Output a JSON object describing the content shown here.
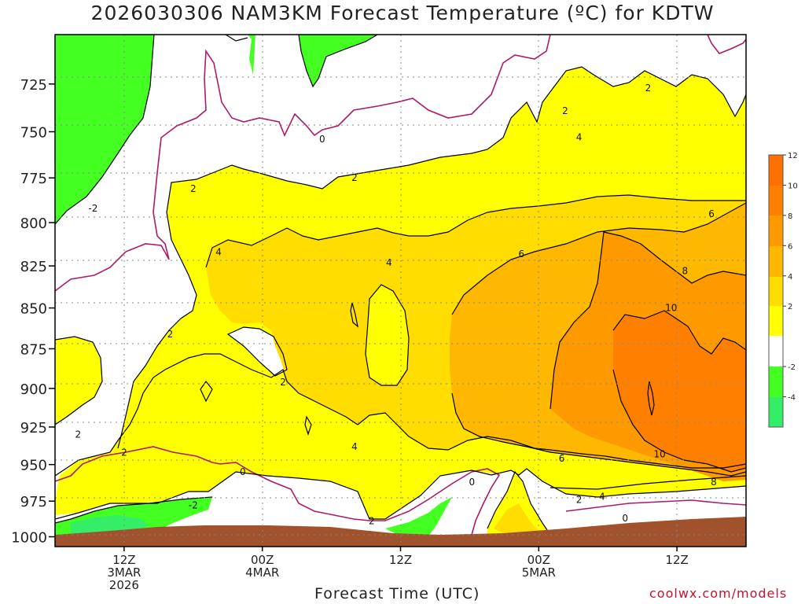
{
  "title": "2026030306 NAM3KM Forecast Temperature (ºC) for KDTW",
  "xlabel": "Forecast Time (UTC)",
  "credit": "coolwx.com/models",
  "colors": {
    "lt_neg4": "#33ee66",
    "neg4_neg2": "#44ff22",
    "neg2_2": "#ffffff",
    "2_4": "#ffff00",
    "4_6": "#ffdd00",
    "6_8": "#ffb800",
    "8_10": "#ff9900",
    "10_12": "#ff8000",
    "gt_12": "#ff7000",
    "ground": "#a0522d",
    "zero_line": "#b01868",
    "contour": "#000000"
  },
  "chart_data": {
    "type": "heatmap",
    "title": "2026030306 NAM3KM Forecast Temperature (ºC) for KDTW",
    "xlabel": "Forecast Time (UTC)",
    "ylabel": "",
    "x_ticks": [
      {
        "hour": 6,
        "lines": [
          "12Z",
          "3MAR",
          "2026"
        ]
      },
      {
        "hour": 18,
        "lines": [
          "00Z",
          "4MAR"
        ]
      },
      {
        "hour": 30,
        "lines": [
          "12Z"
        ]
      },
      {
        "hour": 42,
        "lines": [
          "00Z",
          "5MAR"
        ]
      },
      {
        "hour": 54,
        "lines": [
          "12Z"
        ]
      }
    ],
    "xlim_hours": [
      0,
      60
    ],
    "y_ticks": [
      725,
      750,
      775,
      800,
      825,
      850,
      875,
      900,
      925,
      950,
      975,
      1000
    ],
    "ylim_hpa": [
      1007,
      700
    ],
    "contour_levels_c": [
      -4,
      -2,
      0,
      2,
      4,
      6,
      8,
      10,
      12
    ],
    "colorbar_ticks": [
      12,
      10,
      8,
      6,
      4,
      2,
      -2,
      -4
    ],
    "contour_labels": [
      {
        "text": "-2",
        "hour": 3.3,
        "hpa": 792
      },
      {
        "text": "2",
        "hour": 12.0,
        "hpa": 781
      },
      {
        "text": "0",
        "hour": 23.2,
        "hpa": 754
      },
      {
        "text": "2",
        "hour": 26.0,
        "hpa": 775
      },
      {
        "text": "2",
        "hour": 44.3,
        "hpa": 739
      },
      {
        "text": "2",
        "hour": 51.5,
        "hpa": 727
      },
      {
        "text": "4",
        "hour": 45.5,
        "hpa": 753
      },
      {
        "text": "4",
        "hour": 14.2,
        "hpa": 817
      },
      {
        "text": "4",
        "hour": 29.0,
        "hpa": 823
      },
      {
        "text": "6",
        "hour": 40.5,
        "hpa": 818
      },
      {
        "text": "6",
        "hour": 57.0,
        "hpa": 795
      },
      {
        "text": "8",
        "hour": 54.7,
        "hpa": 828
      },
      {
        "text": "10",
        "hour": 53.5,
        "hpa": 850
      },
      {
        "text": "2",
        "hour": 10.0,
        "hpa": 866
      },
      {
        "text": "2",
        "hour": 19.8,
        "hpa": 896
      },
      {
        "text": "4",
        "hour": 26.0,
        "hpa": 938
      },
      {
        "text": "2",
        "hour": 2.0,
        "hpa": 930
      },
      {
        "text": "2",
        "hour": 6.0,
        "hpa": 942
      },
      {
        "text": "0",
        "hour": 16.3,
        "hpa": 955
      },
      {
        "text": "-2",
        "hour": 12.0,
        "hpa": 978
      },
      {
        "text": "0",
        "hour": 36.2,
        "hpa": 962
      },
      {
        "text": "2",
        "hour": 27.5,
        "hpa": 989
      },
      {
        "text": "6",
        "hour": 44.0,
        "hpa": 946
      },
      {
        "text": "10",
        "hour": 52.5,
        "hpa": 943
      },
      {
        "text": "4",
        "hour": 47.5,
        "hpa": 972
      },
      {
        "text": "2",
        "hour": 45.5,
        "hpa": 974
      },
      {
        "text": "8",
        "hour": 57.2,
        "hpa": 962
      },
      {
        "text": "0",
        "hour": 49.5,
        "hpa": 987
      }
    ]
  }
}
